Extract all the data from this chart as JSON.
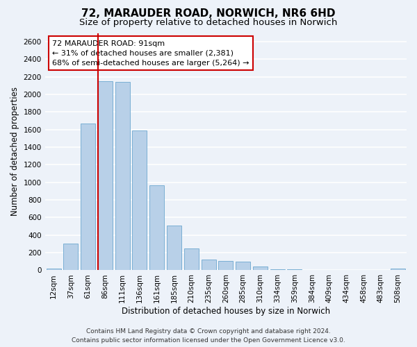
{
  "title_line1": "72, MARAUDER ROAD, NORWICH, NR6 6HD",
  "title_line2": "Size of property relative to detached houses in Norwich",
  "xlabel": "Distribution of detached houses by size in Norwich",
  "ylabel": "Number of detached properties",
  "categories": [
    "12sqm",
    "37sqm",
    "61sqm",
    "86sqm",
    "111sqm",
    "136sqm",
    "161sqm",
    "185sqm",
    "210sqm",
    "235sqm",
    "260sqm",
    "285sqm",
    "310sqm",
    "334sqm",
    "359sqm",
    "384sqm",
    "409sqm",
    "434sqm",
    "458sqm",
    "483sqm",
    "508sqm"
  ],
  "values": [
    20,
    300,
    1670,
    2150,
    2140,
    1590,
    970,
    510,
    245,
    120,
    110,
    95,
    40,
    15,
    10,
    5,
    5,
    5,
    5,
    5,
    20
  ],
  "bar_color": "#b8d0e8",
  "bar_edge_color": "#7aafd4",
  "highlight_bar_index": 3,
  "highlight_line_color": "#cc0000",
  "annotation_line1": "72 MARAUDER ROAD: 91sqm",
  "annotation_line2": "← 31% of detached houses are smaller (2,381)",
  "annotation_line3": "68% of semi-detached houses are larger (5,264) →",
  "annotation_box_facecolor": "#ffffff",
  "annotation_box_edgecolor": "#cc0000",
  "footer_line1": "Contains HM Land Registry data © Crown copyright and database right 2024.",
  "footer_line2": "Contains public sector information licensed under the Open Government Licence v3.0.",
  "ylim": [
    0,
    2700
  ],
  "yticks": [
    0,
    200,
    400,
    600,
    800,
    1000,
    1200,
    1400,
    1600,
    1800,
    2000,
    2200,
    2400,
    2600
  ],
  "bg_color": "#edf2f9",
  "grid_color": "#ffffff",
  "title_fontsize": 11,
  "subtitle_fontsize": 9.5,
  "axis_label_fontsize": 8.5,
  "tick_fontsize": 7.5,
  "annotation_fontsize": 8,
  "footer_fontsize": 6.5
}
